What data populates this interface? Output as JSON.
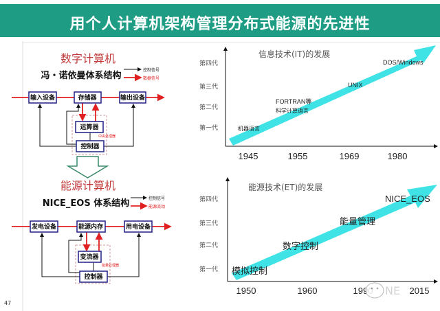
{
  "title": "用个人计算机架构管理分布式能源的先进性",
  "page_number": "47",
  "colors": {
    "title_bg": "#1f9d84",
    "arrow": "#3fe3e6",
    "box_border": "#2c2c8a",
    "data_line": "#e02020"
  },
  "digital": {
    "heading": "数字计算机",
    "subtitle": "冯・诺依曼体系结构",
    "legend": [
      "控制信号",
      "数据信号"
    ],
    "boxes": [
      "输入设备",
      "存储器",
      "输出设备",
      "运算器",
      "控制器"
    ],
    "cpu_label": "中央处理器"
  },
  "energy": {
    "heading": "能源计算机",
    "subtitle": "NICE_EOS 体系结构",
    "legend": [
      "控制信号",
      "能源流动"
    ],
    "boxes": [
      "发电设备",
      "能源内存",
      "用电设备",
      "变流器",
      "控制器"
    ],
    "cpu_label": "能量处理器"
  },
  "it_chart": {
    "title": "信息技术(IT)的发展",
    "generations": [
      "第四代",
      "第三代",
      "第二代",
      "第一代"
    ],
    "years": [
      "1945",
      "1955",
      "1969",
      "1980"
    ],
    "milestones": [
      "机器语言",
      "FORTRAN等",
      "科学计算语言",
      "UNIX",
      "DOS/Windows"
    ]
  },
  "et_chart": {
    "title": "能源技术(ET)的发展",
    "generations": [
      "第四代",
      "第三代",
      "第二代",
      "第一代"
    ],
    "years": [
      "1950",
      "1960",
      "1990",
      "2015"
    ],
    "milestones": [
      "模拟控制",
      "数字控制",
      "能量管理",
      "NICE_EOS"
    ]
  },
  "watermark": "NE"
}
